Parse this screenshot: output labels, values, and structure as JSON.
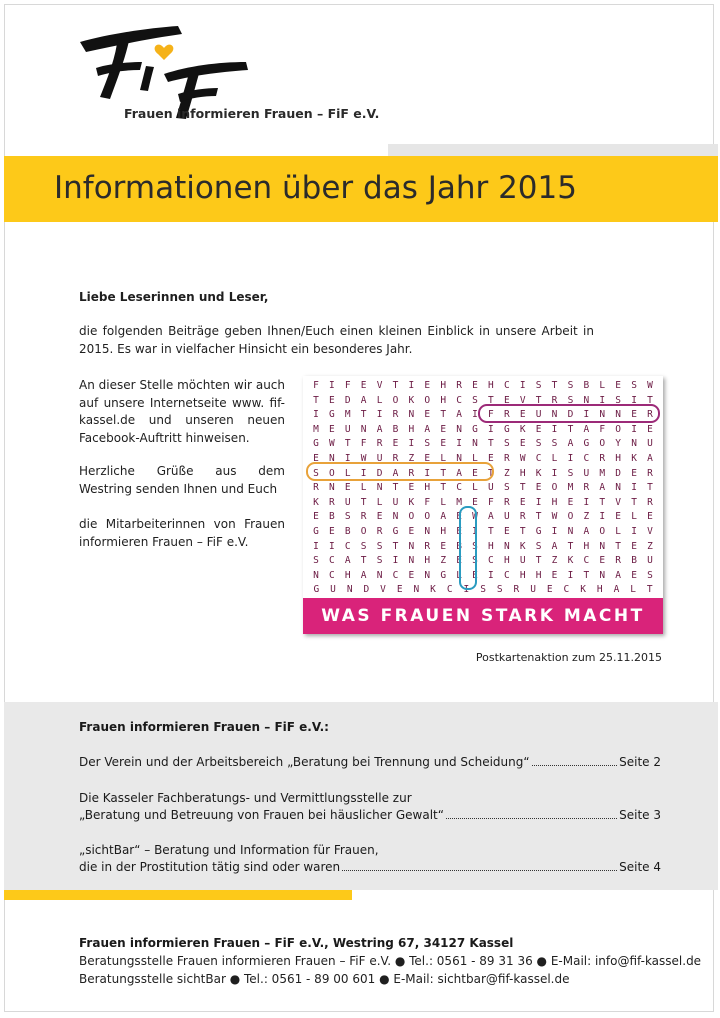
{
  "logo": {
    "org_name": "Frauen informieren Frauen – FiF e.V.",
    "mark": "FiF"
  },
  "title": "Informationen über das Jahr 2015",
  "greeting": "Liebe Leserinnen und Leser,",
  "intro": "die folgenden Beiträge geben Ihnen/Euch einen kleinen Einblick in unsere Arbeit in 2015. Es war in vielfacher Hinsicht ein besonderes Jahr.",
  "paragraphs": [
    "An dieser Stelle möchten wir auch auf unsere Internetseite www. fif-kassel.de und unseren neuen Facebook-Auftritt hinweisen.",
    "Herzliche Grüße aus dem Westring senden Ihnen und Euch",
    "die Mitarbeiterinnen von Frauen informieren Frauen – FiF e.V."
  ],
  "wordsearch": {
    "rows": [
      "FIFEVTIEHREHCISTSBLESW",
      "TEDALOKOHCSTEVTRSNISIT",
      "IGMTIRNETAIFREUNDINNER",
      "MEUNABHAENGIGKEITAFOIE",
      "GWTFREISEINTSESSAGOYNU",
      "ENIWURZELNLERWCLICRHKA",
      "SOLIDARITAETZHKISUMDER",
      "RNELNTEHTCLUSTEOMRANIT",
      "KRUTLUKFLMEFREIHEITVTR",
      "EBSRENOOAEWAURTWOZIELE",
      "GEBORGENHEITETGINAOLIV",
      "IICSSTNREBSHNKSATHNTEZ",
      "SCATSINHZESCHUTZKCERBU",
      "NCHANCENGLEICHHEITNAES",
      "GUNDVENKCISSRUECKHALT"
    ],
    "colors": {
      "letters": "#6b1a43",
      "freundinnen": "#9c2a78",
      "solidaritaet": "#e8a23a",
      "vertical": "#2a9bc0"
    },
    "banner": "WAS FRAUEN STARK MACHT",
    "banner_color": "#d9237a",
    "caption": "Postkartenaktion zum 25.11.2015"
  },
  "contents": {
    "heading": "Frauen informieren Frauen – FiF e.V.:",
    "entries": [
      {
        "lines": [
          "Der Verein und der Arbeitsbereich „Beratung bei Trennung und Scheidung“"
        ],
        "page": "Seite 2"
      },
      {
        "lines": [
          "Die Kasseler Fachberatungs- und Vermittlungsstelle zur",
          "„Beratung und Betreuung von Frauen bei häuslicher Gewalt“"
        ],
        "page": "Seite 3"
      },
      {
        "lines": [
          "„sichtBar“ – Beratung und Information für Frauen,",
          "die in der Prostitution tätig sind oder waren"
        ],
        "page": "Seite 4"
      }
    ]
  },
  "footer": {
    "heading": "Frauen informieren Frauen – FiF e.V., Westring 67, 34127 Kassel",
    "line1": "Beratungsstelle Frauen informieren Frauen – FiF e.V. ● Tel.: 0561 - 89 31 36 ● E-Mail: info@fif-kassel.de",
    "line2": "Beratungsstelle sichtBar ● Tel.: 0561 - 89 00 601 ● E-Mail: sichtbar@fif-kassel.de"
  },
  "accent_colors": {
    "yellow": "#fdc919",
    "grey": "#e9e9e9"
  }
}
